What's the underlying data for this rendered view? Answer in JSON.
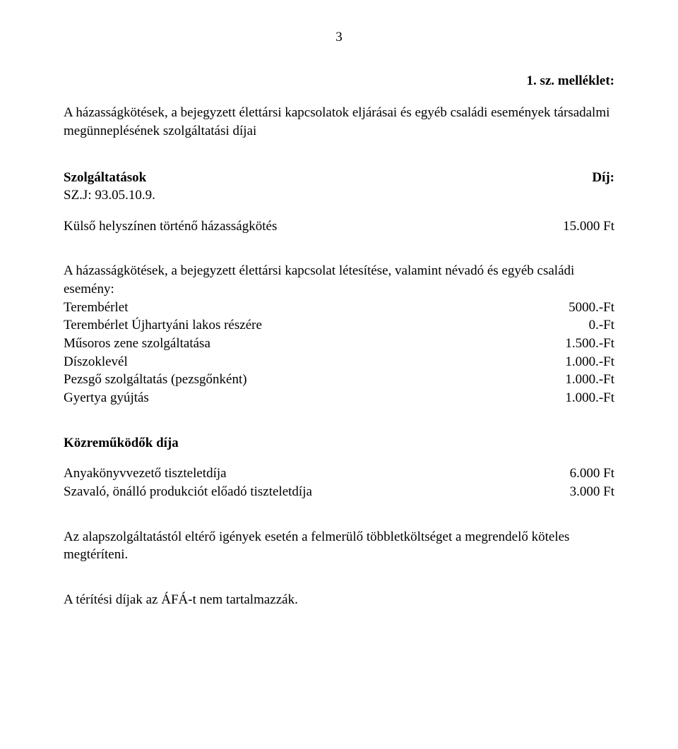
{
  "page_number": "3",
  "attachment_heading": "1. sz. melléklet:",
  "intro": "A házasságkötések, a bejegyzett élettársi kapcsolatok eljárásai és egyéb családi események társadalmi megünneplésének szolgáltatási díjai",
  "services": {
    "label": "Szolgáltatások",
    "fee_label": "Díj:",
    "code": "SZ.J: 93.05.10.9.",
    "external_label": "Külső helyszínen történő házasságkötés",
    "external_value": "15.000 Ft"
  },
  "events": {
    "intro": "A házasságkötések, a bejegyzett élettársi kapcsolat létesítése, valamint névadó és egyéb családi esemény:",
    "rows": [
      {
        "label": "Terembérlet",
        "value": "5000.-Ft"
      },
      {
        "label": "Terembérlet Újhartyáni lakos részére",
        "value": "0.-Ft"
      },
      {
        "label": "Műsoros zene szolgáltatása",
        "value": "1.500.-Ft"
      },
      {
        "label": "Díszoklevél",
        "value": "1.000.-Ft"
      },
      {
        "label": "Pezsgő szolgáltatás (pezsgőnként)",
        "value": "1.000.-Ft"
      },
      {
        "label": "Gyertya gyújtás",
        "value": "1.000.-Ft"
      }
    ]
  },
  "contributors": {
    "heading": "Közreműködők díja",
    "rows": [
      {
        "label": "Anyakönyvvezető tiszteletdíja",
        "value": "6.000 Ft"
      },
      {
        "label": "Szavaló, önálló produkciót előadó tiszteletdíja",
        "value": "3.000 Ft"
      }
    ]
  },
  "note1": "Az alapszolgáltatástól eltérő igények esetén a felmerülő többletköltséget a megrendelő köteles megtéríteni.",
  "note2": "A térítési díjak az ÁFÁ-t nem tartalmazzák."
}
